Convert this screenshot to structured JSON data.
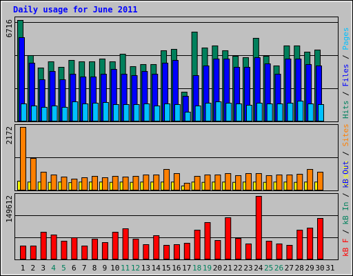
{
  "chart_data": [
    {
      "type": "bar",
      "title": "Daily usage for June 2011",
      "ylim": [
        0,
        6716
      ],
      "yticks": [
        6716
      ],
      "series": [
        {
          "name": "Hits",
          "color": "#00805c",
          "values": [
            6716,
            4387,
            3565,
            3976,
            3610,
            4067,
            3976,
            3976,
            4159,
            3976,
            4479,
            3656,
            3793,
            3793,
            4707,
            4799,
            1965,
            5941,
            4890,
            5027,
            4707,
            4342,
            4250,
            5530,
            4342,
            3702,
            5027,
            5027,
            4616,
            4753,
            null
          ]
        },
        {
          "name": "Files",
          "color": "#0000ff",
          "values": [
            5575,
            3885,
            2788,
            3336,
            2788,
            3153,
            2971,
            2971,
            3153,
            3473,
            3153,
            3062,
            3336,
            3153,
            3885,
            4067,
            1691,
            3062,
            3702,
            4159,
            4159,
            3610,
            3610,
            4250,
            3839,
            3153,
            4159,
            4159,
            3793,
            3702,
            null
          ]
        },
        {
          "name": "Pages",
          "color": "#00c0ff",
          "values": [
            1188,
            1051,
            960,
            1051,
            960,
            1325,
            1188,
            1234,
            1280,
            1142,
            1142,
            1142,
            1188,
            1051,
            1188,
            1142,
            640,
            1051,
            1234,
            1325,
            1234,
            1188,
            1097,
            1234,
            1188,
            1188,
            1234,
            1371,
            1188,
            1142,
            null
          ]
        }
      ]
    },
    {
      "type": "bar",
      "ylim": [
        0,
        2172
      ],
      "yticks": [
        2172
      ],
      "series": [
        {
          "name": "Visits",
          "color": "#ffff00",
          "values": [
            330,
            300,
            300,
            290,
            300,
            280,
            300,
            300,
            300,
            290,
            300,
            290,
            300,
            300,
            300,
            300,
            165,
            300,
            290,
            300,
            300,
            290,
            300,
            300,
            290,
            300,
            300,
            290,
            300,
            300,
            null
          ]
        },
        {
          "name": "Sites",
          "color": "#ff8000",
          "values": [
            2172,
            1110,
            638,
            543,
            472,
            401,
            449,
            496,
            449,
            496,
            472,
            496,
            543,
            543,
            732,
            590,
            260,
            496,
            543,
            543,
            590,
            520,
            590,
            590,
            520,
            543,
            543,
            567,
            732,
            638,
            null
          ]
        }
      ]
    },
    {
      "type": "bar",
      "ylim": [
        0,
        149612
      ],
      "yticks": [
        149612
      ],
      "categories": [
        "1",
        "2",
        "3",
        "4",
        "5",
        "6",
        "7",
        "8",
        "9",
        "10",
        "11",
        "12",
        "13",
        "14",
        "15",
        "16",
        "17",
        "18",
        "19",
        "20",
        "21",
        "22",
        "23",
        "24",
        "25",
        "26",
        "27",
        "28",
        "29",
        "30",
        "31"
      ],
      "category_colors": [
        "#000000",
        "#000000",
        "#000000",
        "#00805c",
        "#00805c",
        "#000000",
        "#000000",
        "#000000",
        "#000000",
        "#000000",
        "#00805c",
        "#00805c",
        "#000000",
        "#000000",
        "#000000",
        "#000000",
        "#000000",
        "#00805c",
        "#00805c",
        "#000000",
        "#000000",
        "#000000",
        "#000000",
        "#000000",
        "#00805c",
        "#00805c",
        "#000000",
        "#000000",
        "#000000",
        "#000000",
        "#000000"
      ],
      "series": [
        {
          "name": "kB F",
          "color": "#ff0000",
          "values": [
            32522,
            32522,
            65044,
            58538,
            43903,
            52032,
            32522,
            48782,
            40652,
            65044,
            73173,
            48782,
            35774,
            56912,
            34148,
            35774,
            39025,
            69920,
            87807,
            45529,
            99189,
            50408,
            37399,
            149612,
            43903,
            37399,
            34148,
            69920,
            74799,
            97565,
            null
          ]
        },
        {
          "name": "kB In",
          "color": "#00805c",
          "values": [
            0,
            0,
            0,
            0,
            0,
            0,
            0,
            0,
            0,
            0,
            0,
            0,
            0,
            0,
            0,
            0,
            0,
            0,
            0,
            0,
            0,
            0,
            0,
            0,
            0,
            0,
            0,
            0,
            0,
            0,
            null
          ]
        },
        {
          "name": "kB Out",
          "color": "#0000ff",
          "values": [
            0,
            0,
            0,
            0,
            0,
            0,
            0,
            0,
            0,
            0,
            0,
            0,
            0,
            0,
            0,
            0,
            0,
            0,
            0,
            0,
            0,
            0,
            0,
            0,
            0,
            0,
            0,
            0,
            0,
            0,
            null
          ]
        }
      ]
    }
  ]
}
